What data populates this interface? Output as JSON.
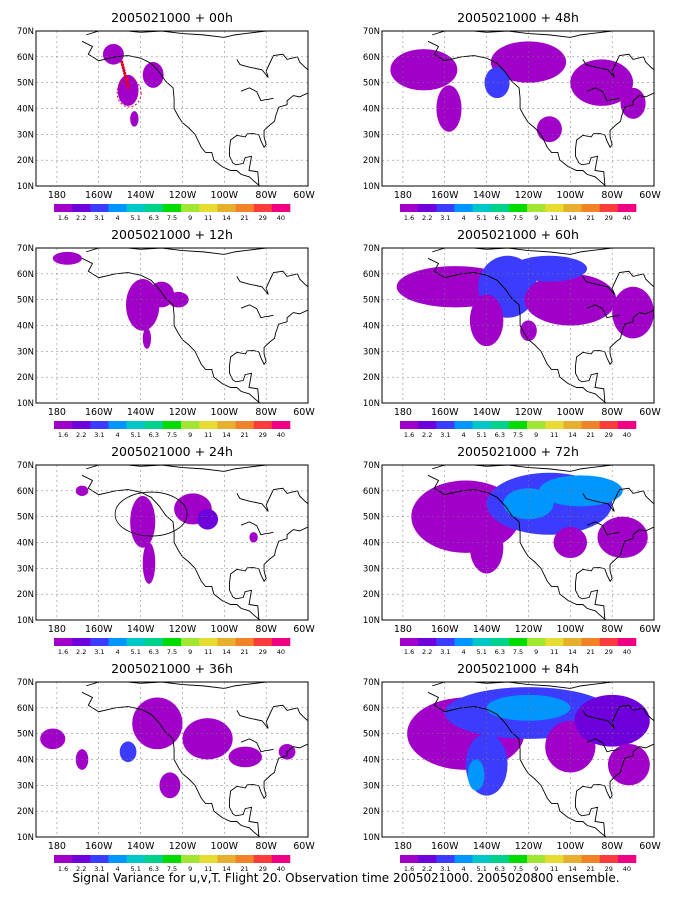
{
  "caption": "Signal Variance for u,v,T. Flight 20. Observation time 2005021000. 2005020800 ensemble.",
  "colors": {
    "scale": [
      "#a000c8",
      "#6e00dc",
      "#3c3cff",
      "#0096ff",
      "#00c8c8",
      "#00d28c",
      "#00dc00",
      "#a0e632",
      "#e6dc32",
      "#e6af2d",
      "#f08228",
      "#fa3c3c",
      "#f00082"
    ],
    "coast": "#000000",
    "grid": "#777777",
    "flight_track": "#e0002a"
  },
  "map": {
    "lon_ticks": [
      "180",
      "160W",
      "140W",
      "120W",
      "100W",
      "80W",
      "60W"
    ],
    "lat_ticks": [
      "10N",
      "20N",
      "30N",
      "40N",
      "50N",
      "60N",
      "70N"
    ],
    "colorbar_labels": [
      "1.6",
      "2.2",
      "3.1",
      "4",
      "5.1",
      "6.3",
      "7.5",
      "9",
      "11",
      "14",
      "21",
      "29",
      "40"
    ]
  },
  "panels": [
    {
      "title": "2005021000 + 00h",
      "level": 1
    },
    {
      "title": "2005021000 + 48h",
      "level": 5
    },
    {
      "title": "2005021000 + 12h",
      "level": 2
    },
    {
      "title": "2005021000 + 60h",
      "level": 6
    },
    {
      "title": "2005021000 + 24h",
      "level": 3
    },
    {
      "title": "2005021000 + 72h",
      "level": 7
    },
    {
      "title": "2005021000 + 36h",
      "level": 4
    },
    {
      "title": "2005021000 + 84h",
      "level": 8
    }
  ]
}
